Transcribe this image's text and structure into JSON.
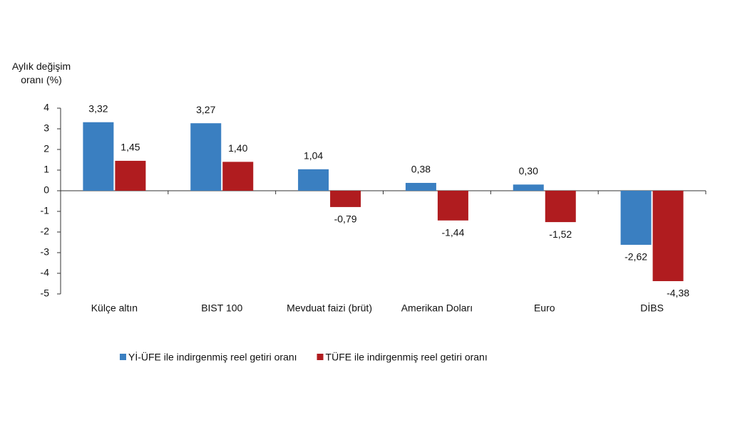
{
  "chart_data": {
    "type": "bar",
    "y_label": "Aylık değişim oranı (%)",
    "categories": [
      "Külçe altın",
      "BIST 100",
      "Mevduat faizi (brüt)",
      "Amerikan Doları",
      "Euro",
      "DİBS"
    ],
    "series": [
      {
        "name": "Yİ-ÜFE ile indirgenmiş reel getiri oranı",
        "color": "#3a7fc1",
        "values": [
          3.32,
          3.27,
          1.04,
          0.38,
          0.3,
          -2.62
        ],
        "value_labels": [
          "3,32",
          "3,27",
          "1,04",
          "0,38",
          "0,30",
          "-2,62"
        ]
      },
      {
        "name": "TÜFE ile indirgenmiş reel getiri oranı",
        "color": "#b01c1f",
        "values": [
          1.45,
          1.4,
          -0.79,
          -1.44,
          -1.52,
          -4.38
        ],
        "value_labels": [
          "1,45",
          "1,40",
          "-0,79",
          "-1,44",
          "-1,52",
          "-4,38"
        ]
      }
    ],
    "ylim": [
      -5,
      4
    ],
    "yticks": [
      -5,
      -4,
      -3,
      -2,
      -1,
      0,
      1,
      2,
      3,
      4
    ],
    "legend": "bottom"
  }
}
